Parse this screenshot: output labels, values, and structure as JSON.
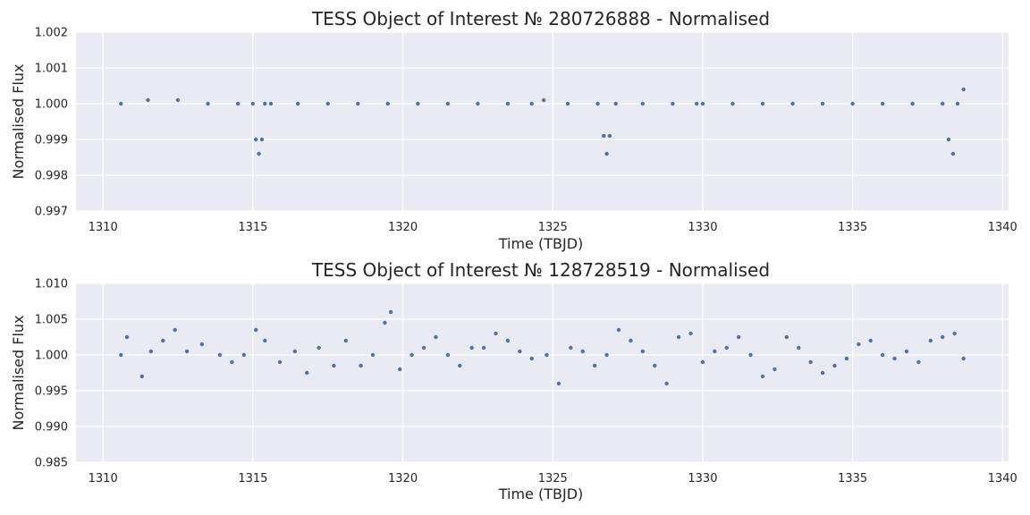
{
  "chart_data": [
    {
      "type": "scatter",
      "title": "TESS Object of Interest № 280726888 - Normalised",
      "xlabel": "Time (TBJD)",
      "ylabel": "Normalised Flux",
      "xlim": [
        1309.1,
        1340.2
      ],
      "ylim": [
        0.997,
        1.002
      ],
      "xticks": [
        1310,
        1315,
        1320,
        1325,
        1330,
        1335,
        1340
      ],
      "yticks": [
        0.997,
        0.998,
        0.999,
        1.0,
        1.001,
        1.002
      ],
      "xtick_labels": [
        "1310",
        "1315",
        "1320",
        "1325",
        "1330",
        "1335",
        "1340"
      ],
      "ytick_labels": [
        "0.997",
        "0.998",
        "0.999",
        "1.000",
        "1.001",
        "1.002"
      ],
      "grid": true,
      "marker_color": "#4c72b0",
      "background_color": "#eaeaf2",
      "series": [
        {
          "x": [
            1310.6,
            1311.5,
            1312.5,
            1313.5,
            1314.5,
            1315.0,
            1315.1,
            1315.2,
            1315.3,
            1315.4,
            1315.6,
            1316.5,
            1317.5,
            1318.5,
            1319.5,
            1320.5,
            1321.5,
            1322.5,
            1323.5,
            1324.3,
            1324.7,
            1325.5,
            1326.5,
            1326.7,
            1326.8,
            1326.9,
            1327.1,
            1328.0,
            1329.0,
            1329.8,
            1330.0,
            1331.0,
            1332.0,
            1333.0,
            1334.0,
            1335.0,
            1336.0,
            1337.0,
            1338.0,
            1338.2,
            1338.35,
            1338.5,
            1338.7
          ],
          "y": [
            1.0,
            1.0001,
            1.0001,
            1.0,
            1.0,
            1.0,
            0.999,
            0.9986,
            0.999,
            1.0,
            1.0,
            1.0,
            1.0,
            1.0,
            1.0,
            1.0,
            1.0,
            1.0,
            1.0,
            1.0,
            1.0001,
            1.0,
            1.0,
            0.9991,
            0.9986,
            0.9991,
            1.0,
            1.0,
            1.0,
            1.0,
            1.0,
            1.0,
            1.0,
            1.0,
            1.0,
            1.0,
            1.0,
            1.0,
            1.0,
            0.999,
            0.9986,
            1.0,
            1.0004
          ]
        }
      ]
    },
    {
      "type": "scatter",
      "title": "TESS Object of Interest № 128728519 - Normalised",
      "xlabel": "Time (TBJD)",
      "ylabel": "Normalised Flux",
      "xlim": [
        1309.1,
        1340.2
      ],
      "ylim": [
        0.985,
        1.01
      ],
      "xticks": [
        1310,
        1315,
        1320,
        1325,
        1330,
        1335,
        1340
      ],
      "yticks": [
        0.985,
        0.99,
        0.995,
        1.0,
        1.005,
        1.01
      ],
      "xtick_labels": [
        "1310",
        "1315",
        "1320",
        "1325",
        "1330",
        "1335",
        "1340"
      ],
      "ytick_labels": [
        "0.985",
        "0.990",
        "0.995",
        "1.000",
        "1.005",
        "1.010"
      ],
      "grid": true,
      "marker_color": "#4c72b0",
      "background_color": "#eaeaf2",
      "series": [
        {
          "x": [
            1310.6,
            1310.8,
            1311.3,
            1311.6,
            1312.0,
            1312.4,
            1312.8,
            1313.3,
            1313.9,
            1314.3,
            1314.7,
            1315.1,
            1315.4,
            1315.9,
            1316.4,
            1316.8,
            1317.2,
            1317.7,
            1318.1,
            1318.6,
            1319.0,
            1319.4,
            1319.6,
            1319.9,
            1320.3,
            1320.7,
            1321.1,
            1321.5,
            1321.9,
            1322.3,
            1322.7,
            1323.1,
            1323.5,
            1323.9,
            1324.3,
            1324.8,
            1325.2,
            1325.6,
            1326.0,
            1326.4,
            1326.8,
            1327.2,
            1327.6,
            1328.0,
            1328.4,
            1328.8,
            1329.2,
            1329.6,
            1330.0,
            1330.4,
            1330.8,
            1331.2,
            1331.6,
            1332.0,
            1332.4,
            1332.8,
            1333.2,
            1333.6,
            1334.0,
            1334.4,
            1334.8,
            1335.2,
            1335.6,
            1336.0,
            1336.4,
            1336.8,
            1337.2,
            1337.6,
            1338.0,
            1338.4,
            1338.7
          ],
          "y": [
            1.0,
            1.0025,
            0.997,
            1.0005,
            1.002,
            1.0035,
            1.0005,
            1.0015,
            1.0,
            0.999,
            1.0,
            1.0035,
            1.002,
            0.999,
            1.0005,
            0.9975,
            1.001,
            0.9985,
            1.002,
            0.9985,
            1.0,
            1.0045,
            1.006,
            0.998,
            1.0,
            1.001,
            1.0025,
            1.0,
            0.9985,
            1.001,
            1.001,
            1.003,
            1.002,
            1.0005,
            0.9995,
            1.0,
            0.996,
            1.001,
            1.0005,
            0.9985,
            1.0,
            1.0035,
            1.002,
            1.0005,
            0.9985,
            0.996,
            1.0025,
            1.003,
            0.999,
            1.0005,
            1.001,
            1.0025,
            1.0,
            0.997,
            0.998,
            1.0025,
            1.001,
            0.999,
            0.9975,
            0.9985,
            0.9995,
            1.0015,
            1.002,
            1.0,
            0.9995,
            1.0005,
            0.999,
            1.002,
            1.0025,
            1.003,
            0.9995
          ]
        }
      ]
    }
  ]
}
